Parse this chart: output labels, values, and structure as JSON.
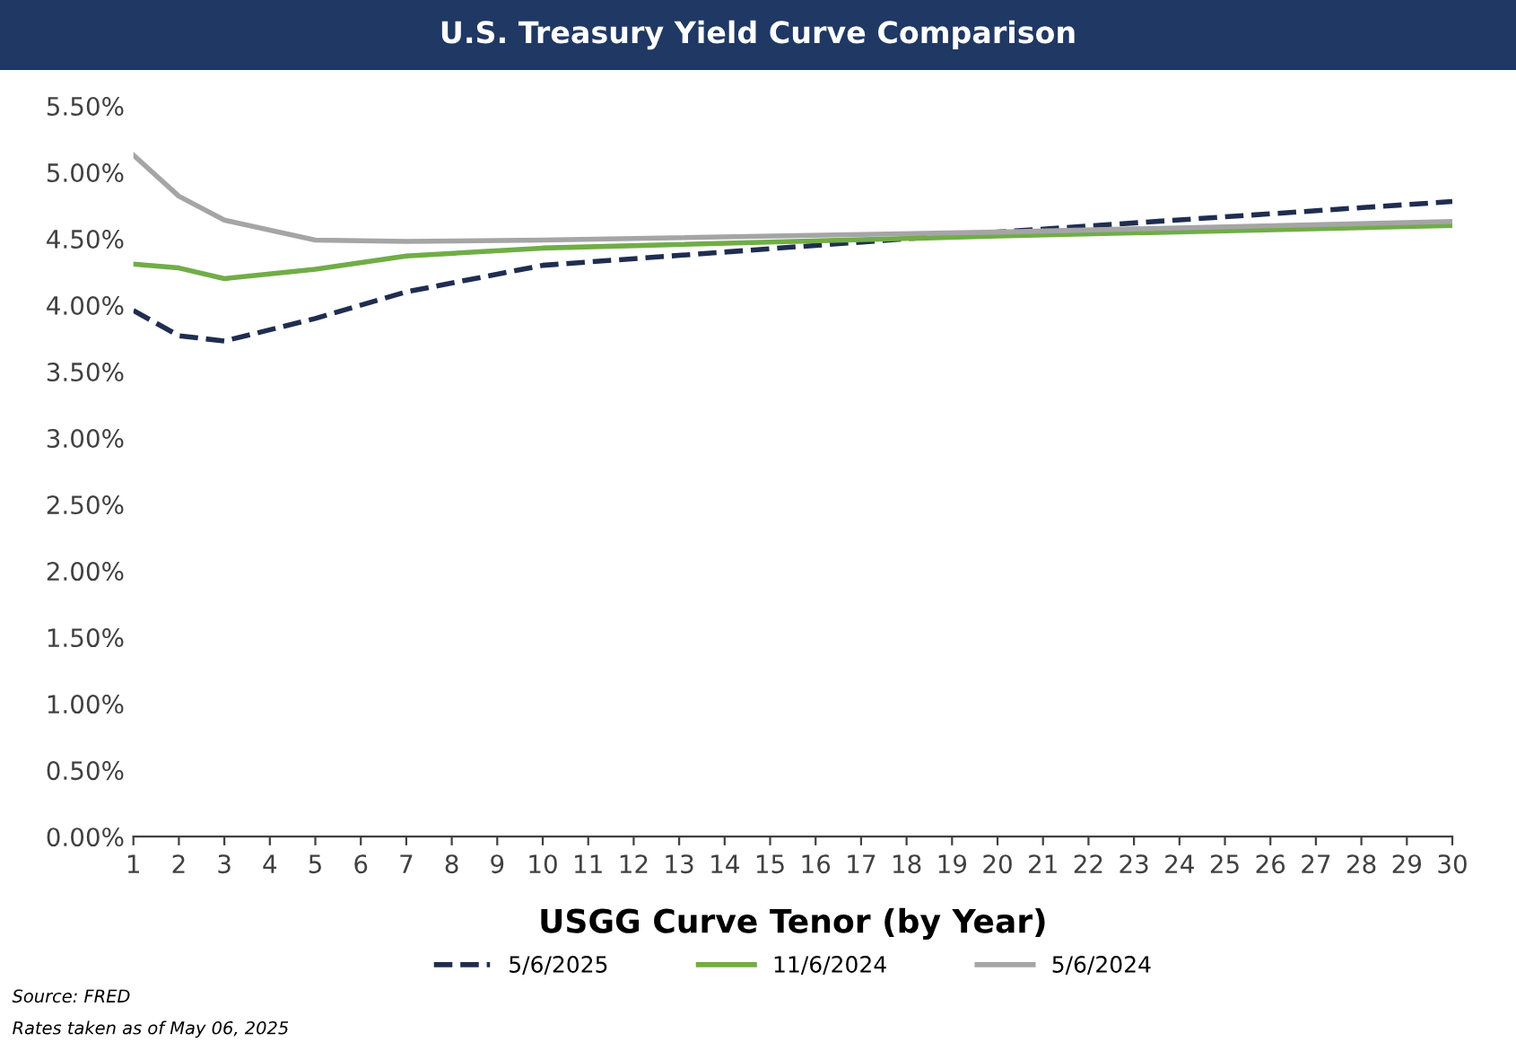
{
  "chart_data": {
    "type": "line",
    "title": "U.S. Treasury Yield Curve Comparison",
    "xlabel": "USGG Curve Tenor (by Year)",
    "xlim": [
      1,
      30
    ],
    "xticks": [
      1,
      2,
      3,
      4,
      5,
      6,
      7,
      8,
      9,
      10,
      11,
      12,
      13,
      14,
      15,
      16,
      17,
      18,
      19,
      20,
      21,
      22,
      23,
      24,
      25,
      26,
      27,
      28,
      29,
      30
    ],
    "ylim": [
      0,
      5.5
    ],
    "yticks": [
      {
        "value": 0,
        "label": "0.00%"
      },
      {
        "value": 0.5,
        "label": "0.50%"
      },
      {
        "value": 1,
        "label": "1.00%"
      },
      {
        "value": 1.5,
        "label": "1.50%"
      },
      {
        "value": 2,
        "label": "2.00%"
      },
      {
        "value": 2.5,
        "label": "2.50%"
      },
      {
        "value": 3,
        "label": "3.00%"
      },
      {
        "value": 3.5,
        "label": "3.50%"
      },
      {
        "value": 4,
        "label": "4.00%"
      },
      {
        "value": 4.5,
        "label": "4.50%"
      },
      {
        "value": 5,
        "label": "5.00%"
      },
      {
        "value": 5.5,
        "label": "5.50%"
      }
    ],
    "grid": false,
    "legend": "bottom",
    "marker": "none",
    "series": [
      {
        "name": "5/6/2025",
        "color": "#1f2d50",
        "line_style": "dashed",
        "x": [
          1,
          2,
          3,
          5,
          7,
          10,
          20,
          30
        ],
        "values": [
          3.96,
          3.77,
          3.73,
          3.9,
          4.1,
          4.3,
          4.55,
          4.78
        ]
      },
      {
        "name": "11/6/2024",
        "color": "#70ad47",
        "line_style": "solid",
        "x": [
          1,
          2,
          3,
          5,
          7,
          10,
          20,
          30
        ],
        "values": [
          4.31,
          4.28,
          4.2,
          4.27,
          4.37,
          4.43,
          4.52,
          4.6
        ]
      },
      {
        "name": "5/6/2024",
        "color": "#a5a5a5",
        "line_style": "solid",
        "x": [
          1,
          2,
          3,
          5,
          7,
          10,
          20,
          30
        ],
        "values": [
          5.13,
          4.82,
          4.64,
          4.49,
          4.48,
          4.49,
          4.55,
          4.63
        ]
      }
    ],
    "annotations": [
      "Source: FRED",
      "Rates taken as of May 06, 2025"
    ]
  }
}
